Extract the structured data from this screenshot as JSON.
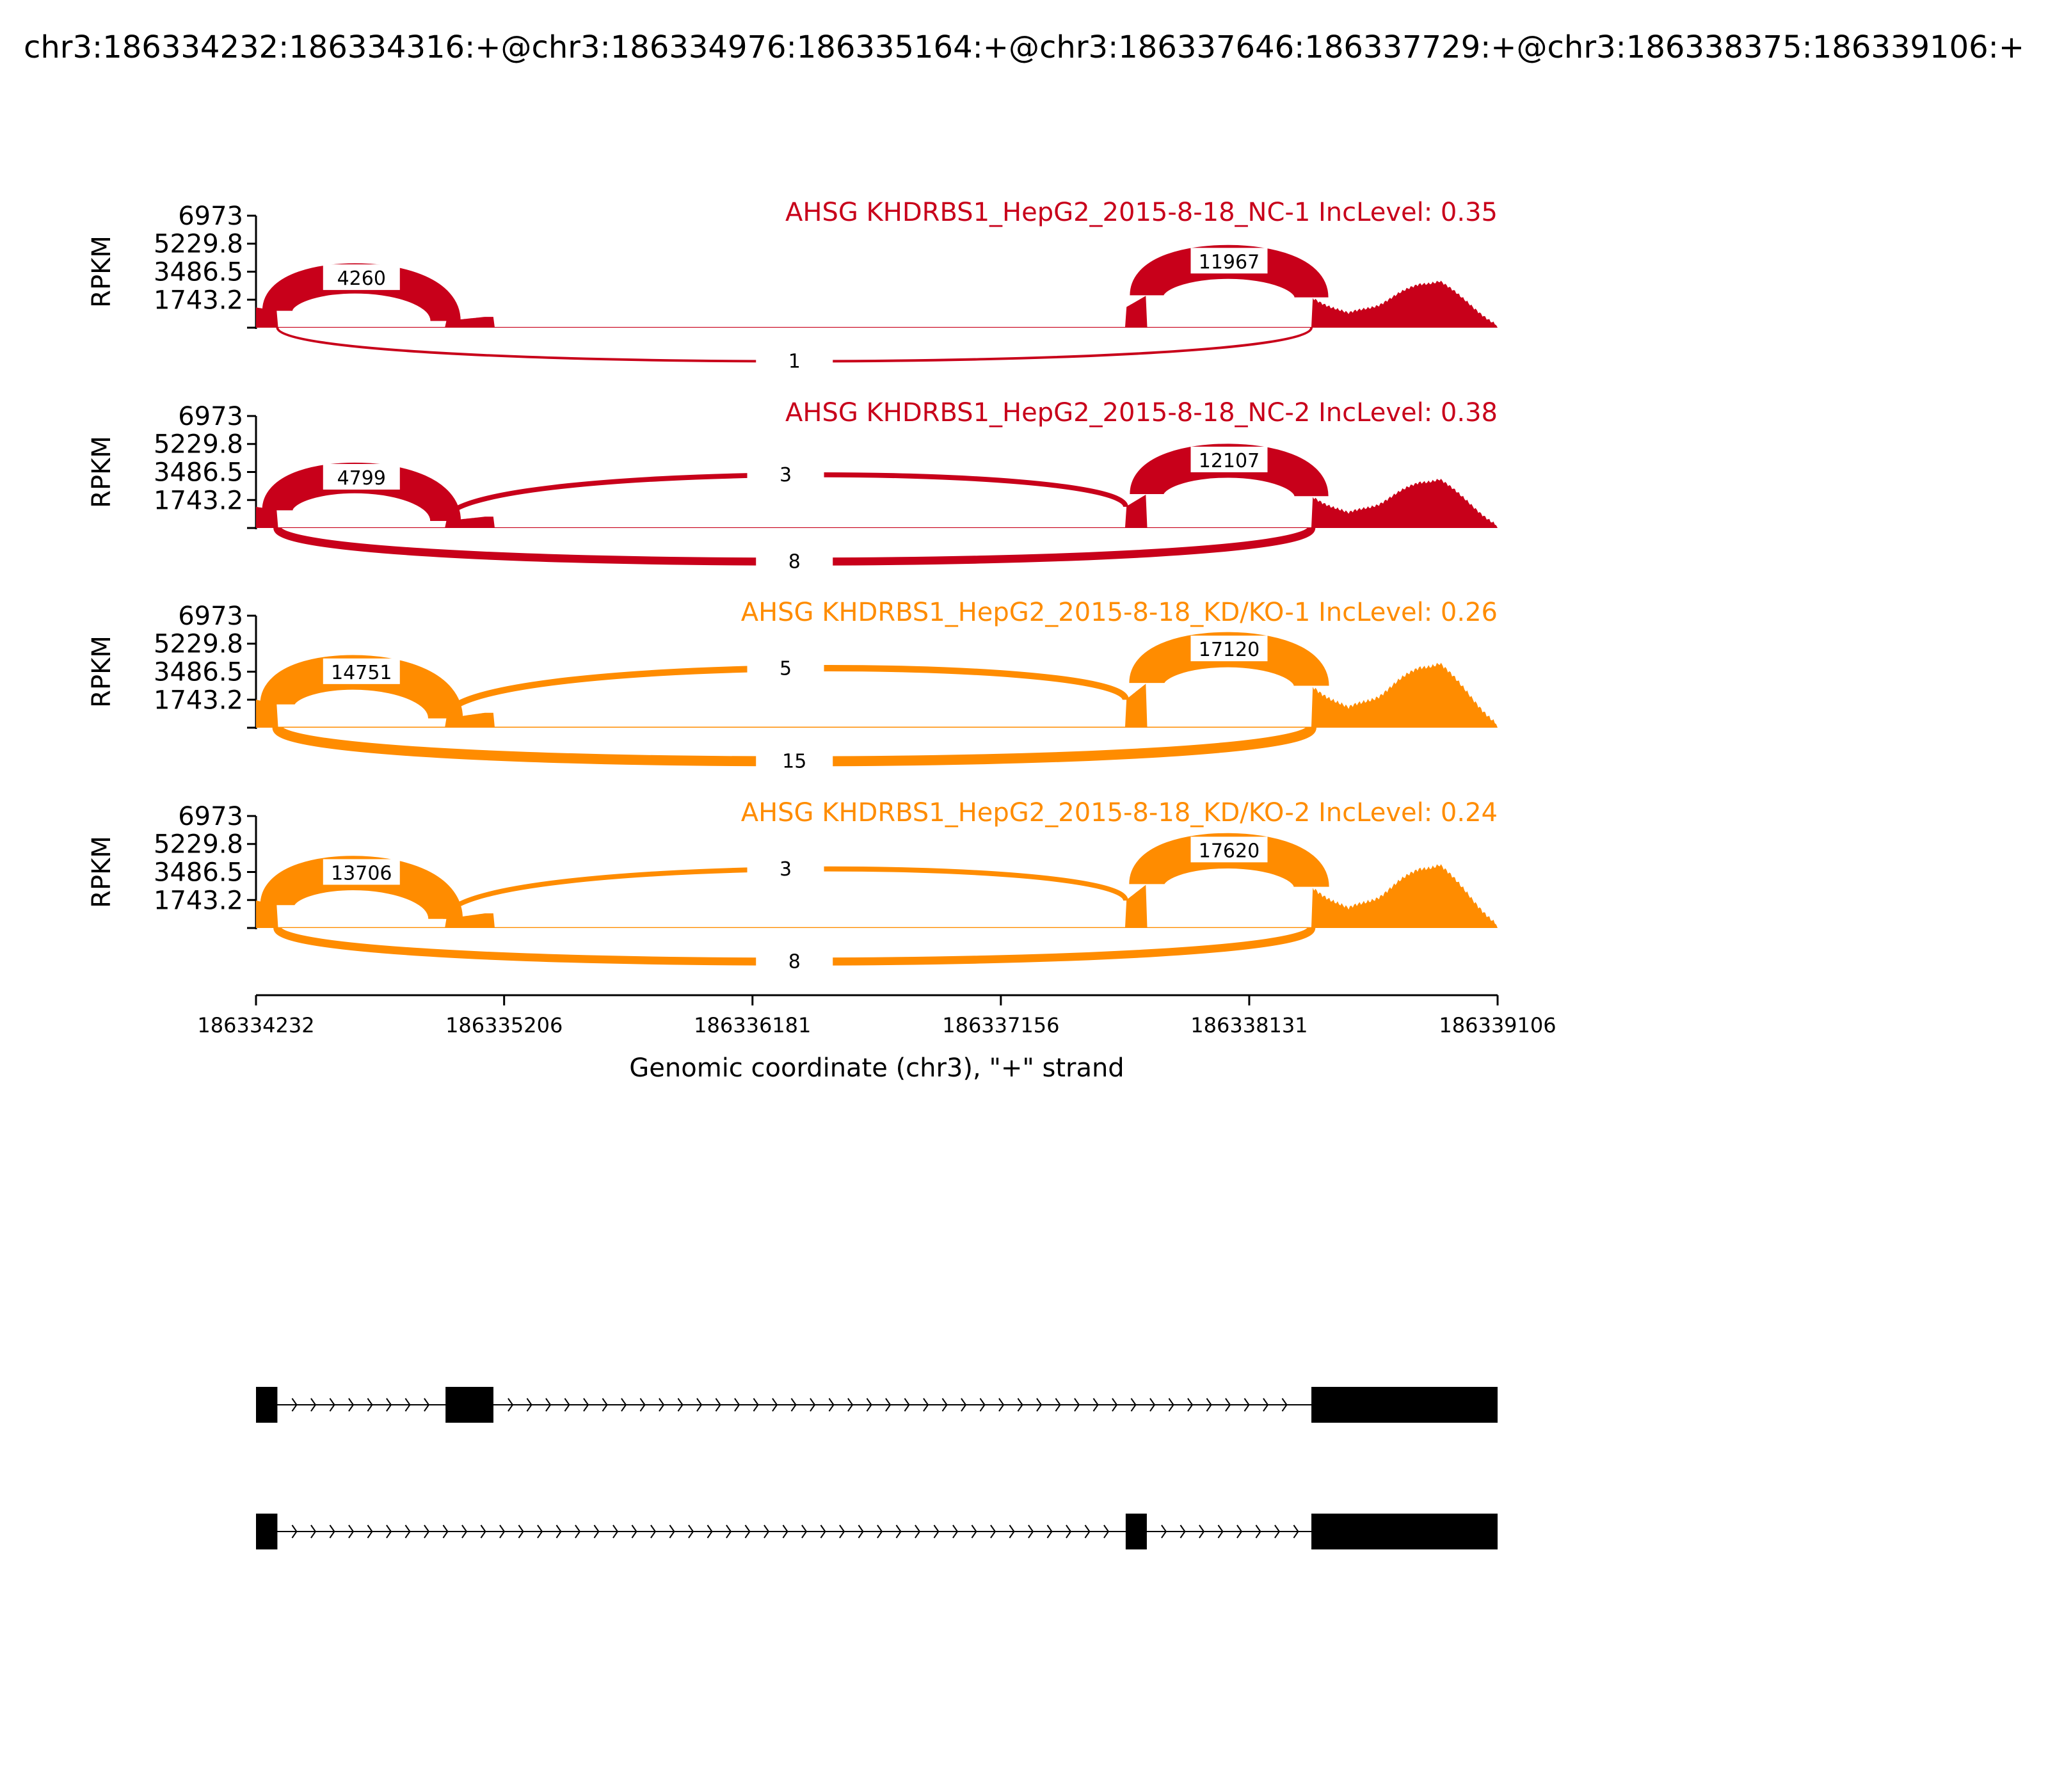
{
  "chart_data": {
    "type": "area",
    "title": "chr3:186334232:186334316:+@chr3:186334976:186335164:+@chr3:186337646:186337729:+@chr3:186338375:186339106:+",
    "xlabel": "Genomic coordinate (chr3), \"+\" strand",
    "ylabel": "RPKM",
    "xlim": [
      186334232,
      186339106
    ],
    "xticks": [
      "186334232",
      "186335206",
      "186336181",
      "186337156",
      "186338131",
      "186339106"
    ],
    "ylim": [
      0,
      6973
    ],
    "yticks": [
      "6973",
      "5229.8",
      "3486.5",
      "1743.2"
    ],
    "exons": [
      [
        186334232,
        186334316
      ],
      [
        186334976,
        186335164
      ],
      [
        186337646,
        186337729
      ],
      [
        186338375,
        186339106
      ]
    ],
    "coverage_points": [
      {
        "x": 186334232,
        "rel": 0.3
      },
      {
        "x": 186334316,
        "rel": 0.25
      },
      {
        "x": 186334976,
        "rel": 0.1
      },
      {
        "x": 186335130,
        "rel": 0.16
      },
      {
        "x": 186335164,
        "rel": 0.16
      },
      {
        "x": 186336350,
        "rel": 0.22
      },
      {
        "x": 186336440,
        "rel": 0.3
      },
      {
        "x": 186337646,
        "rel": 0.3
      },
      {
        "x": 186337729,
        "rel": 0.48
      },
      {
        "x": 186338375,
        "rel": 0.45
      },
      {
        "x": 186338520,
        "rel": 0.2
      },
      {
        "x": 186338640,
        "rel": 0.35
      },
      {
        "x": 186338800,
        "rel": 0.65
      },
      {
        "x": 186338880,
        "rel": 0.7
      },
      {
        "x": 186338960,
        "rel": 0.45
      },
      {
        "x": 186339100,
        "rel": 0.05
      }
    ],
    "series": [
      {
        "name": "AHSG KHDRBS1_HepG2_2015-8-18_NC-1 IncLevel: 0.35",
        "color": "#c8001a",
        "peak": 4200,
        "junctions": [
          {
            "start": 186334316,
            "end": 186334976,
            "count": 4260,
            "side": "above"
          },
          {
            "start": 186337729,
            "end": 186338375,
            "count": 11967,
            "side": "above"
          },
          {
            "start": 186334316,
            "end": 186338375,
            "count": 1,
            "side": "below"
          }
        ]
      },
      {
        "name": "AHSG KHDRBS1_HepG2_2015-8-18_NC-2 IncLevel: 0.38",
        "color": "#c8001a",
        "peak": 4400,
        "junctions": [
          {
            "start": 186334316,
            "end": 186334976,
            "count": 4799,
            "side": "above"
          },
          {
            "start": 186337729,
            "end": 186338375,
            "count": 12107,
            "side": "above"
          },
          {
            "start": 186334976,
            "end": 186337646,
            "count": 3,
            "side": "above"
          },
          {
            "start": 186334316,
            "end": 186338375,
            "count": 8,
            "side": "below"
          }
        ]
      },
      {
        "name": "AHSG KHDRBS1_HepG2_2015-8-18_KD/KO-1 IncLevel: 0.26",
        "color": "#ff8c00",
        "peak": 5800,
        "junctions": [
          {
            "start": 186334316,
            "end": 186334976,
            "count": 14751,
            "side": "above"
          },
          {
            "start": 186337729,
            "end": 186338375,
            "count": 17120,
            "side": "above"
          },
          {
            "start": 186334976,
            "end": 186337646,
            "count": 5,
            "side": "above"
          },
          {
            "start": 186334316,
            "end": 186338375,
            "count": 15,
            "side": "below"
          }
        ]
      },
      {
        "name": "AHSG KHDRBS1_HepG2_2015-8-18_KD/KO-2 IncLevel: 0.24",
        "color": "#ff8c00",
        "peak": 5700,
        "junctions": [
          {
            "start": 186334316,
            "end": 186334976,
            "count": 13706,
            "side": "above"
          },
          {
            "start": 186337729,
            "end": 186338375,
            "count": 17620,
            "side": "above"
          },
          {
            "start": 186334976,
            "end": 186337646,
            "count": 3,
            "side": "above"
          },
          {
            "start": 186334316,
            "end": 186338375,
            "count": 8,
            "side": "below"
          }
        ]
      }
    ],
    "isoforms": [
      {
        "exons": [
          [
            186334232,
            186334316
          ],
          [
            186334976,
            186335164
          ],
          [
            186338375,
            186339106
          ]
        ]
      },
      {
        "exons": [
          [
            186334232,
            186334316
          ],
          [
            186337646,
            186337729
          ],
          [
            186338375,
            186339106
          ]
        ]
      }
    ]
  }
}
